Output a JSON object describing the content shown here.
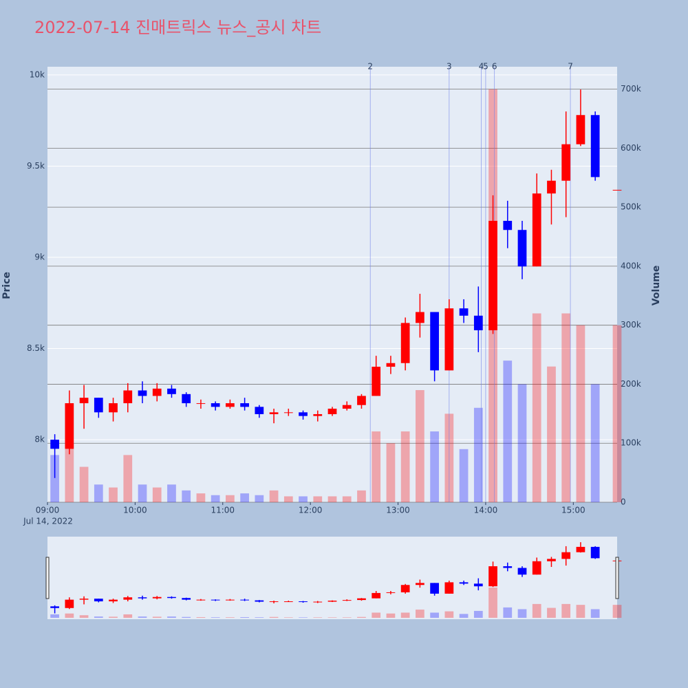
{
  "chart_data": {
    "type": "candlestick",
    "title": "2022-07-14 진매트릭스 뉴스_공시 차트",
    "y_label": "Price",
    "y2_label": "Volume",
    "x_date_label": "Jul 14, 2022",
    "x": [
      "09:05",
      "09:15",
      "09:25",
      "09:35",
      "09:45",
      "09:55",
      "10:05",
      "10:15",
      "10:25",
      "10:35",
      "10:45",
      "10:55",
      "11:05",
      "11:15",
      "11:25",
      "11:35",
      "11:45",
      "11:55",
      "12:05",
      "12:15",
      "12:25",
      "12:35",
      "12:45",
      "12:55",
      "13:05",
      "13:15",
      "13:25",
      "13:35",
      "13:45",
      "13:55",
      "14:05",
      "14:15",
      "14:25",
      "14:35",
      "14:45",
      "14:55",
      "15:05",
      "15:15",
      "15:30"
    ],
    "open": [
      8000,
      7950,
      8200,
      8230,
      8150,
      8200,
      8270,
      8240,
      8280,
      8250,
      8200,
      8200,
      8180,
      8200,
      8180,
      8140,
      8150,
      8150,
      8130,
      8140,
      8170,
      8190,
      8240,
      8400,
      8420,
      8640,
      8700,
      8380,
      8720,
      8680,
      8600,
      9200,
      9150,
      8950,
      9350,
      9420,
      9620,
      9780,
      9370
    ],
    "high": [
      8030,
      8270,
      8300,
      8230,
      8230,
      8310,
      8320,
      8310,
      8300,
      8260,
      8220,
      8210,
      8220,
      8230,
      8190,
      8170,
      8170,
      8160,
      8160,
      8180,
      8210,
      8250,
      8460,
      8460,
      8670,
      8800,
      8700,
      8770,
      8770,
      8840,
      9340,
      9310,
      9200,
      9460,
      9480,
      9800,
      9920,
      9800,
      9370
    ],
    "low": [
      7790,
      7920,
      8060,
      8120,
      8100,
      8150,
      8200,
      8210,
      8230,
      8180,
      8170,
      8160,
      8170,
      8160,
      8120,
      8090,
      8130,
      8110,
      8100,
      8130,
      8160,
      8170,
      8240,
      8360,
      8380,
      8560,
      8320,
      8380,
      8640,
      8480,
      8580,
      9050,
      8880,
      8950,
      9180,
      9220,
      9610,
      9420,
      9370
    ],
    "close": [
      7950,
      8200,
      8230,
      8150,
      8200,
      8270,
      8240,
      8280,
      8250,
      8200,
      8200,
      8180,
      8200,
      8180,
      8140,
      8150,
      8150,
      8130,
      8140,
      8170,
      8190,
      8240,
      8400,
      8420,
      8640,
      8700,
      8380,
      8720,
      8680,
      8600,
      9200,
      9150,
      8950,
      9350,
      9420,
      9620,
      9780,
      9440,
      9370
    ],
    "volume": [
      80000,
      100000,
      60000,
      30000,
      25000,
      80000,
      30000,
      25000,
      30000,
      20000,
      15000,
      12000,
      12000,
      15000,
      12000,
      20000,
      10000,
      10000,
      10000,
      10000,
      10000,
      20000,
      120000,
      100000,
      120000,
      190000,
      120000,
      150000,
      90000,
      160000,
      700000,
      240000,
      200000,
      320000,
      230000,
      320000,
      300000,
      200000,
      300000
    ],
    "increasing_color": "#ff0000",
    "decreasing_color": "#0000ff",
    "news": {
      "x": [
        "12:41",
        "13:35",
        "13:57",
        "14:00",
        "14:06",
        "14:58"
      ],
      "labels": [
        "2",
        "3",
        "4",
        "5",
        "6",
        "7"
      ]
    },
    "xlim": [
      "09:00",
      "15:30"
    ],
    "xticks": [
      {
        "value": "09:00",
        "label": "09:00"
      },
      {
        "value": "10:00",
        "label": "10:00"
      },
      {
        "value": "11:00",
        "label": "11:00"
      },
      {
        "value": "12:00",
        "label": "12:00"
      },
      {
        "value": "13:00",
        "label": "13:00"
      },
      {
        "value": "14:00",
        "label": "14:00"
      },
      {
        "value": "15:00",
        "label": "15:00"
      }
    ],
    "ylim": [
      7657,
      10045
    ],
    "yticks": [
      {
        "value": 8000,
        "label": "8k"
      },
      {
        "value": 8500,
        "label": "8.5k"
      },
      {
        "value": 9000,
        "label": "9k"
      },
      {
        "value": 9500,
        "label": "9.5k"
      },
      {
        "value": 10000,
        "label": "10k"
      }
    ],
    "y2lim": [
      0,
      738000
    ],
    "y2ticks": [
      0,
      {
        "value": 100000,
        "label": "100k"
      },
      {
        "value": 200000,
        "label": "200k"
      },
      {
        "value": 300000,
        "label": "300k"
      },
      {
        "value": 400000,
        "label": "400k"
      },
      {
        "value": 500000,
        "label": "500k"
      },
      {
        "value": 600000,
        "label": "600k"
      },
      {
        "value": 700000,
        "label": "700k"
      }
    ],
    "grid": true
  }
}
